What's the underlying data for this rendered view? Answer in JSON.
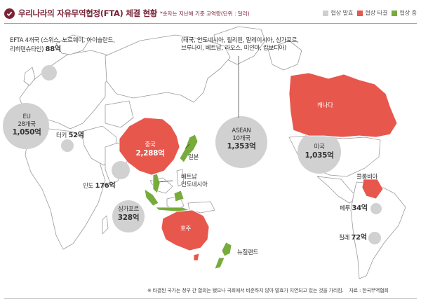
{
  "header": {
    "title": "우리나라의 자유무역협정(FTA) 체결 현황",
    "subtitle": "*숫자는 지난해 기준 교역량(단위 : 달러)"
  },
  "legend": [
    {
      "label": "협상 발효",
      "color": "#cfcfcf"
    },
    {
      "label": "협상 타결",
      "color": "#e8574c"
    },
    {
      "label": "협상 중",
      "color": "#77ac3b"
    }
  ],
  "colors": {
    "effective": "#cfcfcf",
    "concluded": "#e8574c",
    "negotiating": "#77ac3b",
    "land": "#ffffff",
    "border": "#9a9a9a",
    "accent": "#7a2336"
  },
  "regions": {
    "efta": {
      "name": "EFTA 4개국 (스위스, 노르웨이, 아이슬란드,",
      "name2": "리히텐슈타인)",
      "value": "88억"
    },
    "eu": {
      "name": "EU",
      "sub": "28개국",
      "value": "1,050억"
    },
    "turkey": {
      "name": "터키",
      "value": "52억"
    },
    "india": {
      "name": "인도",
      "value": "176억"
    },
    "china": {
      "name": "중국",
      "value": "2,288억"
    },
    "japan": {
      "name": "일본"
    },
    "vietnam": {
      "name": "베트남"
    },
    "indonesia": {
      "name": "인도네시아"
    },
    "singapore": {
      "name": "싱가포르",
      "value": "328억"
    },
    "australia": {
      "name": "호주"
    },
    "newzealand": {
      "name": "뉴질랜드"
    },
    "asean": {
      "members": "(태국, 인도네시아, 필리핀, 말레이시아, 싱가포르,",
      "members2": "브루나이, 베트남, 라오스, 미얀마, 캄보디아)",
      "name": "ASEAN",
      "sub": "10개국",
      "value": "1,353억"
    },
    "canada": {
      "name": "캐나다"
    },
    "usa": {
      "name": "미국",
      "value": "1,035억"
    },
    "colombia": {
      "name": "콜롬비아"
    },
    "peru": {
      "name": "페루",
      "value": "34억"
    },
    "chile": {
      "name": "칠레",
      "value": "72억"
    }
  },
  "footnote": "※ 타결된 국가는 정부 간 합의는 됐으나 국회에서 비준하지 않아 발효가 지연되고 있는 것을 가리킴.",
  "source": "자료 : 한국무역협회"
}
